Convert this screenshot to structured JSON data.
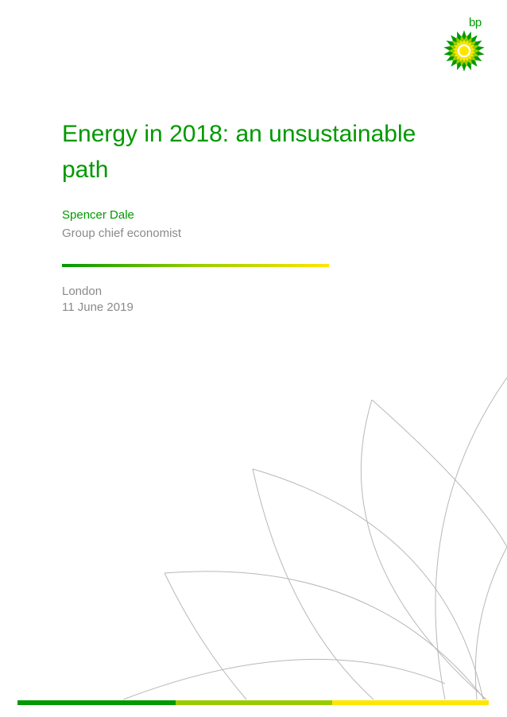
{
  "brand": {
    "logo_text": "bp",
    "colors": {
      "green": "#009900",
      "lime": "#99cc00",
      "yellow": "#ffe600",
      "grey_text": "#8a8a8a",
      "line_grey": "#b8b8b8"
    }
  },
  "cover": {
    "title": "Energy in 2018: an unsustainable path",
    "author_name": "Spencer Dale",
    "author_role": "Group chief economist",
    "location": "London",
    "date": "11 June 2019"
  },
  "icons": {
    "logo": "bp-helios-sunburst-icon"
  }
}
